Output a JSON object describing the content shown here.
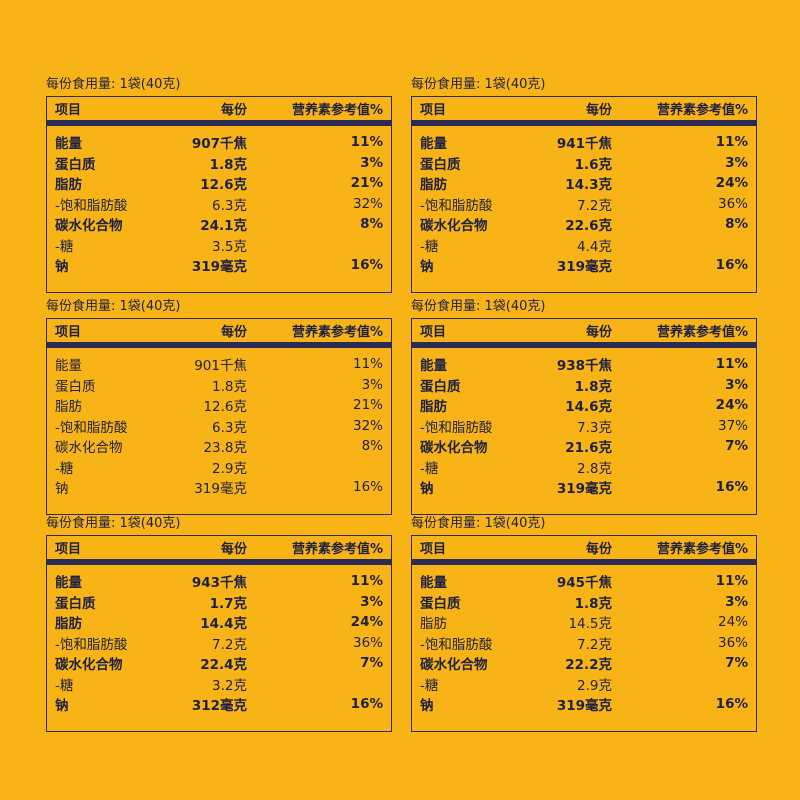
{
  "headers": {
    "item": "项目",
    "per": "每份",
    "nrv": "营养素参考值%"
  },
  "panels": [
    {
      "serving": "每份食用量: 1袋(40克)",
      "rows": [
        {
          "name": "能量",
          "value": "907千焦",
          "nrv": "11%",
          "bold": true
        },
        {
          "name": "蛋白质",
          "value": "1.8克",
          "nrv": "3%",
          "bold": true
        },
        {
          "name": "脂肪",
          "value": "12.6克",
          "nrv": "21%",
          "bold": true
        },
        {
          "name": "-饱和脂肪酸",
          "value": "6.3克",
          "nrv": "32%",
          "bold": false
        },
        {
          "name": "碳水化合物",
          "value": "24.1克",
          "nrv": "8%",
          "bold": true
        },
        {
          "name": "-糖",
          "value": "3.5克",
          "nrv": "",
          "bold": false
        },
        {
          "name": "钠",
          "value": "319毫克",
          "nrv": "16%",
          "bold": true
        }
      ]
    },
    {
      "serving": "每份食用量: 1袋(40克)",
      "rows": [
        {
          "name": "能量",
          "value": "941千焦",
          "nrv": "11%",
          "bold": true
        },
        {
          "name": "蛋白质",
          "value": "1.6克",
          "nrv": "3%",
          "bold": true
        },
        {
          "name": "脂肪",
          "value": "14.3克",
          "nrv": "24%",
          "bold": true
        },
        {
          "name": "-饱和脂肪酸",
          "value": "7.2克",
          "nrv": "36%",
          "bold": false
        },
        {
          "name": "碳水化合物",
          "value": "22.6克",
          "nrv": "8%",
          "bold": true
        },
        {
          "name": "-糖",
          "value": "4.4克",
          "nrv": "",
          "bold": false
        },
        {
          "name": "钠",
          "value": "319毫克",
          "nrv": "16%",
          "bold": true
        }
      ]
    },
    {
      "serving": "每份食用量: 1袋(40克)",
      "rows": [
        {
          "name": "能量",
          "value": "901千焦",
          "nrv": "11%",
          "bold": false
        },
        {
          "name": "蛋白质",
          "value": "1.8克",
          "nrv": "3%",
          "bold": false
        },
        {
          "name": "脂肪",
          "value": "12.6克",
          "nrv": "21%",
          "bold": false
        },
        {
          "name": "-饱和脂肪酸",
          "value": "6.3克",
          "nrv": "32%",
          "bold": false
        },
        {
          "name": "碳水化合物",
          "value": "23.8克",
          "nrv": "8%",
          "bold": false
        },
        {
          "name": "-糖",
          "value": "2.9克",
          "nrv": "",
          "bold": false
        },
        {
          "name": "钠",
          "value": "319毫克",
          "nrv": "16%",
          "bold": false
        }
      ]
    },
    {
      "serving": "每份食用量: 1袋(40克)",
      "rows": [
        {
          "name": "能量",
          "value": "938千焦",
          "nrv": "11%",
          "bold": true
        },
        {
          "name": "蛋白质",
          "value": "1.8克",
          "nrv": "3%",
          "bold": true
        },
        {
          "name": "脂肪",
          "value": "14.6克",
          "nrv": "24%",
          "bold": true
        },
        {
          "name": "-饱和脂肪酸",
          "value": "7.3克",
          "nrv": "37%",
          "bold": false
        },
        {
          "name": "碳水化合物",
          "value": "21.6克",
          "nrv": "7%",
          "bold": true
        },
        {
          "name": "-糖",
          "value": "2.8克",
          "nrv": "",
          "bold": false
        },
        {
          "name": "钠",
          "value": "319毫克",
          "nrv": "16%",
          "bold": true
        }
      ]
    },
    {
      "serving": "每份食用量: 1袋(40克)",
      "rows": [
        {
          "name": "能量",
          "value": "943千焦",
          "nrv": "11%",
          "bold": true
        },
        {
          "name": "蛋白质",
          "value": "1.7克",
          "nrv": "3%",
          "bold": true
        },
        {
          "name": "脂肪",
          "value": "14.4克",
          "nrv": "24%",
          "bold": true
        },
        {
          "name": "-饱和脂肪酸",
          "value": "7.2克",
          "nrv": "36%",
          "bold": false
        },
        {
          "name": "碳水化合物",
          "value": "22.4克",
          "nrv": "7%",
          "bold": true
        },
        {
          "name": "-糖",
          "value": "3.2克",
          "nrv": "",
          "bold": false
        },
        {
          "name": "钠",
          "value": "312毫克",
          "nrv": "16%",
          "bold": true
        }
      ]
    },
    {
      "serving": "每份食用量: 1袋(40克)",
      "rows": [
        {
          "name": "能量",
          "value": "945千焦",
          "nrv": "11%",
          "bold": true
        },
        {
          "name": "蛋白质",
          "value": "1.8克",
          "nrv": "3%",
          "bold": true
        },
        {
          "name": "脂肪",
          "value": "14.5克",
          "nrv": "24%",
          "bold": false
        },
        {
          "name": "-饱和脂肪酸",
          "value": "7.2克",
          "nrv": "36%",
          "bold": false
        },
        {
          "name": "碳水化合物",
          "value": "22.2克",
          "nrv": "7%",
          "bold": true
        },
        {
          "name": "-糖",
          "value": "2.9克",
          "nrv": "",
          "bold": false
        },
        {
          "name": "钠",
          "value": "319毫克",
          "nrv": "16%",
          "bold": true
        }
      ]
    }
  ]
}
